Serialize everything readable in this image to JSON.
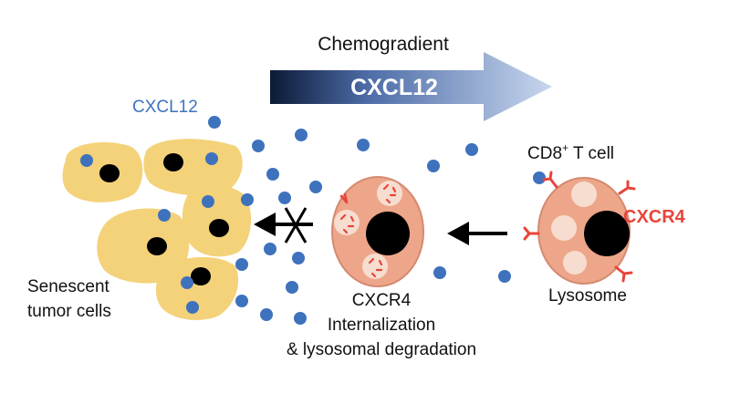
{
  "chemogradient": {
    "title": "Chemogradient",
    "arrow_label": "CXCL12"
  },
  "labels": {
    "cxcl12": "CXCL12",
    "cd8_cell_base": "CD8",
    "cd8_cell_sup": "+",
    "cd8_cell_rest": " T cell",
    "cxcr4_receptor": "CXCR4",
    "lysosome": "Lysosome",
    "senescent_line1": "Senescent",
    "senescent_line2": "tumor cells",
    "internalization_line1": "CXCR4",
    "internalization_line2": "Internalization",
    "internalization_line3": "& lysosomal degradation"
  },
  "colors": {
    "cxcl12_blue": "#3f72bd",
    "receptor_red": "#e8453a",
    "tumor_yellow": "#f4d27a",
    "cell_orange": "#eea68a",
    "lysosome_pink": "#f7ddd0",
    "nucleus_black": "#000000",
    "gradient_dark": "#0b1a36",
    "gradient_light": "#c8d7ee"
  }
}
